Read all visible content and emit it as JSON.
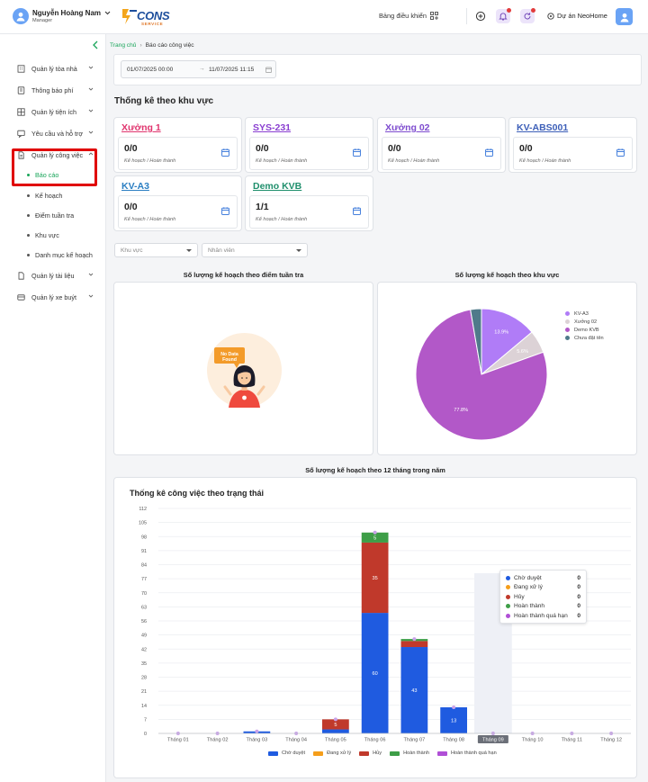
{
  "user": {
    "name": "Nguyễn Hoàng Nam",
    "role": "Manager"
  },
  "brand": {
    "logo_text": "CONS",
    "logo_sub": "SERVICE"
  },
  "header": {
    "dashboard_label": "Bảng điều khiển",
    "project_label": "Dự án NeoHome"
  },
  "sidebar": {
    "items": [
      {
        "label": "Quản lý tòa nhà"
      },
      {
        "label": "Thông báo phí"
      },
      {
        "label": "Quản lý tiện ích"
      },
      {
        "label": "Yêu cầu và hỗ trợ"
      },
      {
        "label": "Quản lý công việc"
      },
      {
        "label": "Quản lý tài liệu"
      },
      {
        "label": "Quản lý xe buýt"
      }
    ],
    "subitems": [
      {
        "label": "Báo cáo"
      },
      {
        "label": "Kế hoạch"
      },
      {
        "label": "Điểm tuần tra"
      },
      {
        "label": "Khu vực"
      },
      {
        "label": "Danh mục kế hoạch"
      }
    ]
  },
  "breadcrumb": {
    "home": "Trang chủ",
    "current": "Báo cáo công việc"
  },
  "date_range": {
    "from": "01/07/2025 00:00",
    "to": "11/07/2025 11:15"
  },
  "zone_section": {
    "title": "Thống kê theo khu vực"
  },
  "zones": [
    {
      "name": "Xưởng 1",
      "value": "0/0",
      "sub": "Kế hoạch / Hoàn thành",
      "color": "#e0356e"
    },
    {
      "name": "SYS-231",
      "value": "0/0",
      "sub": "Kế hoạch / Hoàn thành",
      "color": "#8a3fd1"
    },
    {
      "name": "Xưởng 02",
      "value": "0/0",
      "sub": "Kế hoạch / Hoàn thành",
      "color": "#7e4ccf"
    },
    {
      "name": "KV-ABS001",
      "value": "0/0",
      "sub": "Kế hoạch / Hoàn thành",
      "color": "#3d5fb8"
    },
    {
      "name": "KV-A3",
      "value": "0/0",
      "sub": "Kế hoạch / Hoàn thành",
      "color": "#2a7ec2"
    },
    {
      "name": "Demo KVB",
      "value": "1/1",
      "sub": "Kế hoạch / Hoàn thành",
      "color": "#1f8f6c"
    }
  ],
  "filters": {
    "area_placeholder": "Khu vực",
    "staff_placeholder": "Nhân viên"
  },
  "patrol_chart": {
    "title": "Số lượng kế hoạch theo điểm tuần tra",
    "empty_text": "No Data Found"
  },
  "monthly_section": {
    "title": "Số lượng kế hoạch theo 12 tháng trong năm"
  },
  "colors": {
    "accent": "#19a55a",
    "highlight_box": "#e00000"
  },
  "chart_data": [
    {
      "type": "pie",
      "title": "Số lượng kế hoạch theo khu vực",
      "categories": [
        "KV-A3",
        "Xưởng 02",
        "Demo KVB",
        "Chưa đặt tên"
      ],
      "values": [
        13.9,
        5.6,
        77.8,
        2.7
      ],
      "labels": [
        "13.9%",
        "5.6%",
        "77.8%",
        ""
      ],
      "colors": [
        "#b07cf7",
        "#dcd2d6",
        "#b258c8",
        "#4f7a8a"
      ],
      "legend_position": "right"
    },
    {
      "type": "bar",
      "stacked": true,
      "title": "Thống kê công việc theo trạng thái",
      "categories": [
        "Tháng 01",
        "Tháng 02",
        "Tháng 03",
        "Tháng 04",
        "Tháng 05",
        "Tháng 06",
        "Tháng 07",
        "Tháng 08",
        "Tháng 09",
        "Tháng 10",
        "Tháng 11",
        "Tháng 12"
      ],
      "yticks": [
        0,
        7,
        14,
        21,
        28,
        35,
        42,
        49,
        56,
        63,
        70,
        77,
        84,
        91,
        98,
        105,
        112
      ],
      "ylim": [
        0,
        112
      ],
      "series": [
        {
          "name": "Chờ duyệt",
          "color": "#1f5be0",
          "values": [
            0,
            0,
            1,
            0,
            2,
            60,
            43,
            13,
            0,
            0,
            0,
            0
          ]
        },
        {
          "name": "Đang xử lý",
          "color": "#f59e1b",
          "values": [
            0,
            0,
            0,
            0,
            0,
            0,
            0,
            0,
            0,
            0,
            0,
            0
          ]
        },
        {
          "name": "Hủy",
          "color": "#c0392b",
          "values": [
            0,
            0,
            0,
            0,
            5,
            35,
            3,
            0,
            0,
            0,
            0,
            0
          ]
        },
        {
          "name": "Hoàn thành",
          "color": "#3e9e47",
          "values": [
            0,
            0,
            0,
            0,
            0,
            5,
            1,
            0,
            0,
            0,
            0,
            0
          ]
        },
        {
          "name": "Hoàn thành quá hạn",
          "color": "#b04fd6",
          "values": [
            0,
            0,
            0,
            0,
            0,
            0,
            0,
            0,
            0,
            0,
            0,
            0
          ]
        }
      ],
      "data_labels": [
        {
          "category": "Tháng 05",
          "series": "Hủy",
          "text": "5"
        },
        {
          "category": "Tháng 06",
          "series": "Chờ duyệt",
          "text": "60"
        },
        {
          "category": "Tháng 06",
          "series": "Hủy",
          "text": "35"
        },
        {
          "category": "Tháng 06",
          "series": "Hoàn thành",
          "text": "5"
        },
        {
          "category": "Tháng 07",
          "series": "Chờ duyệt",
          "text": "43"
        },
        {
          "category": "Tháng 08",
          "series": "Chờ duyệt",
          "text": "13"
        }
      ],
      "highlighted_category": "Tháng 09",
      "tooltip": {
        "rows": [
          {
            "name": "Chờ duyệt",
            "value": "0"
          },
          {
            "name": "Đang xử lý",
            "value": "0"
          },
          {
            "name": "Hủy",
            "value": "0"
          },
          {
            "name": "Hoàn thành",
            "value": "0"
          },
          {
            "name": "Hoàn thành quá hạn",
            "value": "0"
          }
        ]
      },
      "legend_position": "bottom"
    }
  ]
}
